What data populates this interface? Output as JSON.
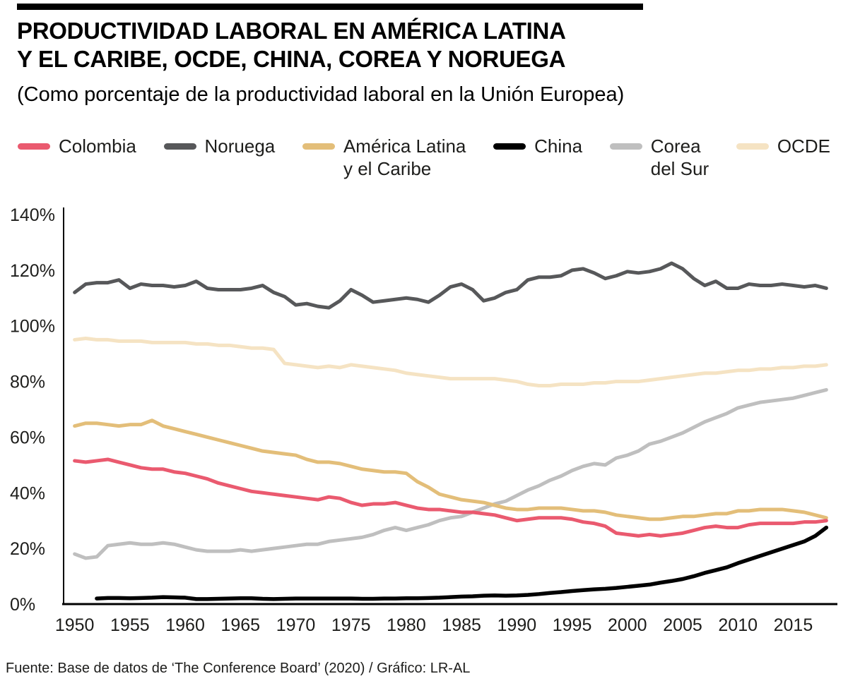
{
  "header": {
    "title_line1": "PRODUCTIVIDAD LABORAL EN AMÉRICA LATINA",
    "title_line2": "Y EL CARIBE, OCDE, CHINA, COREA Y NORUEGA",
    "subtitle": "(Como porcentaje de la productividad laboral en la Unión Europea)"
  },
  "footer": {
    "source": "Fuente: Base de datos de ‘The Conference Board’ (2020) / Gráfico: LR-AL"
  },
  "colors": {
    "accent_bar": "#000000",
    "text": "#1d1d1b",
    "colombia": "#ea5a6f",
    "noruega": "#57585a",
    "america_latina": "#e3be79",
    "china": "#000000",
    "corea_del_sur": "#bfbfbf",
    "ocde": "#f5e3c3"
  },
  "chart_data": {
    "type": "line",
    "title": "Productividad laboral como porcentaje de la productividad laboral en la Unión Europea",
    "xlabel": "",
    "ylabel": "",
    "grid": false,
    "legend_position": "top",
    "x_range": [
      1949,
      2019
    ],
    "y_range": [
      0,
      140
    ],
    "y_ticks": [
      0,
      20,
      40,
      60,
      80,
      100,
      120,
      140
    ],
    "y_tick_suffix": "%",
    "x_ticks": [
      1950,
      1955,
      1960,
      1965,
      1970,
      1975,
      1980,
      1985,
      1990,
      1995,
      2000,
      2005,
      2010,
      2015
    ],
    "legend": [
      {
        "id": "colombia",
        "label_lines": [
          "Colombia"
        ],
        "color": "#ea5a6f"
      },
      {
        "id": "noruega",
        "label_lines": [
          "Noruega"
        ],
        "color": "#57585a"
      },
      {
        "id": "america-latina",
        "label_lines": [
          "América Latina",
          "y el Caribe"
        ],
        "color": "#e3be79"
      },
      {
        "id": "china",
        "label_lines": [
          "China"
        ],
        "color": "#000000"
      },
      {
        "id": "corea-del-sur",
        "label_lines": [
          "Corea",
          "del Sur"
        ],
        "color": "#bfbfbf"
      },
      {
        "id": "ocde",
        "label_lines": [
          "OCDE"
        ],
        "color": "#f5e3c3"
      }
    ],
    "series": [
      {
        "id": "ocde",
        "name": "OCDE",
        "color": "#f5e3c3",
        "width": 5,
        "start_year": 1950,
        "values": [
          95,
          95.5,
          95,
          95,
          94.5,
          94.5,
          94.5,
          94,
          94,
          94,
          94,
          93.5,
          93.5,
          93,
          93,
          92.5,
          92,
          92,
          91.5,
          86.5,
          86,
          85.5,
          85,
          85.5,
          85,
          86,
          85.5,
          85,
          84.5,
          84,
          83,
          82.5,
          82,
          81.5,
          81,
          81,
          81,
          81,
          81,
          80.5,
          80,
          79,
          78.5,
          78.5,
          79,
          79,
          79,
          79.5,
          79.5,
          80,
          80,
          80,
          80.5,
          81,
          81.5,
          82,
          82.5,
          83,
          83,
          83.5,
          84,
          84,
          84.5,
          84.5,
          85,
          85,
          85.5,
          85.5,
          86
        ]
      },
      {
        "id": "noruega",
        "name": "Noruega",
        "color": "#57585a",
        "width": 5,
        "start_year": 1950,
        "values": [
          112,
          115,
          115.5,
          115.5,
          116.5,
          113.5,
          115,
          114.5,
          114.5,
          114,
          114.5,
          116,
          113.5,
          113,
          113,
          113,
          113.5,
          114.5,
          112,
          110.5,
          107.5,
          108,
          107,
          106.5,
          109,
          113,
          111,
          108.5,
          109,
          109.5,
          110,
          109.5,
          108.5,
          111,
          114,
          115,
          113,
          109,
          110,
          112,
          113,
          116.5,
          117.5,
          117.5,
          118,
          120,
          120.5,
          119,
          117,
          118,
          119.5,
          119,
          119.5,
          120.5,
          122.5,
          120.5,
          117,
          114.5,
          116,
          113.5,
          113.5,
          115,
          114.5,
          114.5,
          115,
          114.5,
          114,
          114.5,
          113.5
        ]
      },
      {
        "id": "corea-del-sur",
        "name": "Corea del Sur",
        "color": "#bfbfbf",
        "width": 5,
        "start_year": 1950,
        "values": [
          18,
          16.5,
          17,
          21,
          21.5,
          22,
          21.5,
          21.5,
          22,
          21.5,
          20.5,
          19.5,
          19,
          19,
          19,
          19.5,
          19,
          19.5,
          20,
          20.5,
          21,
          21.5,
          21.5,
          22.5,
          23,
          23.5,
          24,
          25,
          26.5,
          27.5,
          26.5,
          27.5,
          28.5,
          30,
          31,
          31.5,
          33,
          34.5,
          36,
          37,
          39,
          41,
          42.5,
          44.5,
          46,
          48,
          49.5,
          50.5,
          50,
          52.5,
          53.5,
          55,
          57.5,
          58.5,
          60,
          61.5,
          63.5,
          65.5,
          67,
          68.5,
          70.5,
          71.5,
          72.5,
          73,
          73.5,
          74,
          75,
          76,
          77
        ]
      },
      {
        "id": "america-latina",
        "name": "América Latina y el Caribe",
        "color": "#e3be79",
        "width": 5,
        "start_year": 1950,
        "values": [
          64,
          65,
          65,
          64.5,
          64,
          64.5,
          64.5,
          66,
          64,
          63,
          62,
          61,
          60,
          59,
          58,
          57,
          56,
          55,
          54.5,
          54,
          53.5,
          52,
          51,
          51,
          50.5,
          49.5,
          48.5,
          48,
          47.5,
          47.5,
          47,
          44,
          42,
          39.5,
          38.5,
          37.5,
          37,
          36.5,
          35.5,
          34.5,
          34,
          34,
          34.5,
          34.5,
          34.5,
          34,
          33.5,
          33.5,
          33,
          32,
          31.5,
          31,
          30.5,
          30.5,
          31,
          31.5,
          31.5,
          32,
          32.5,
          32.5,
          33.5,
          33.5,
          34,
          34,
          34,
          33.5,
          33,
          32,
          31
        ]
      },
      {
        "id": "colombia",
        "name": "Colombia",
        "color": "#ea5a6f",
        "width": 5,
        "start_year": 1950,
        "values": [
          51.5,
          51,
          51.5,
          52,
          51,
          50,
          49,
          48.5,
          48.5,
          47.5,
          47,
          46,
          45,
          43.5,
          42.5,
          41.5,
          40.5,
          40,
          39.5,
          39,
          38.5,
          38,
          37.5,
          38.5,
          38,
          36.5,
          35.5,
          36,
          36,
          36.5,
          35.5,
          34.5,
          34,
          34,
          33.5,
          33,
          33,
          32.5,
          32,
          31,
          30,
          30.5,
          31,
          31,
          31,
          30.5,
          29.5,
          29,
          28,
          25.5,
          25,
          24.5,
          25,
          24.5,
          25,
          25.5,
          26.5,
          27.5,
          28,
          27.5,
          27.5,
          28.5,
          29,
          29,
          29,
          29,
          29.5,
          29.5,
          30
        ]
      },
      {
        "id": "china",
        "name": "China",
        "color": "#000000",
        "width": 5.5,
        "start_year": 1952,
        "values": [
          2,
          2.2,
          2.2,
          2.1,
          2.2,
          2.3,
          2.5,
          2.4,
          2.3,
          1.8,
          1.8,
          1.9,
          2,
          2.1,
          2.1,
          1.9,
          1.8,
          1.9,
          2,
          2,
          2,
          2,
          2,
          2,
          1.9,
          1.9,
          2,
          2,
          2.1,
          2.1,
          2.2,
          2.3,
          2.5,
          2.7,
          2.8,
          3,
          3.1,
          3,
          3.1,
          3.3,
          3.6,
          4,
          4.3,
          4.7,
          5,
          5.3,
          5.5,
          5.8,
          6.2,
          6.6,
          7,
          7.7,
          8.3,
          9,
          10,
          11.2,
          12.2,
          13.2,
          14.7,
          16,
          17.3,
          18.6,
          19.9,
          21.2,
          22.5,
          24.5,
          27.5
        ]
      }
    ]
  }
}
